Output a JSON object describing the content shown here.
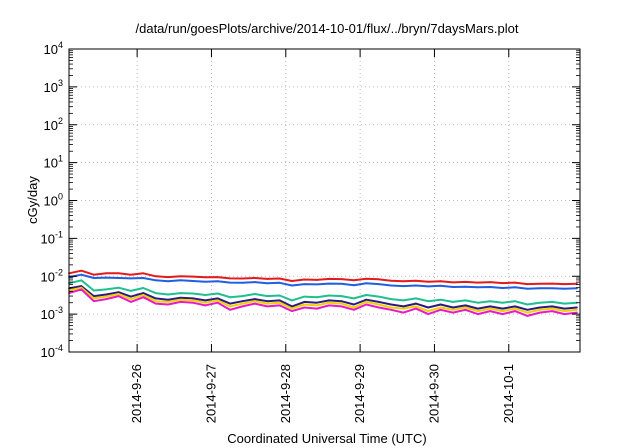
{
  "chart_data": {
    "type": "line",
    "title": "/data/run/goesPlots/archive/2014-10-01/flux/../bryn/7daysMars.plot",
    "xlabel": "Coordinated Universal Time (UTC)",
    "ylabel": "cGy/day",
    "y_scale": "log",
    "ylim": [
      0.0001,
      10000
    ],
    "y_ticks": [
      {
        "value": 0.0001,
        "base": "10",
        "exp": "-4"
      },
      {
        "value": 0.001,
        "base": "10",
        "exp": "-3"
      },
      {
        "value": 0.01,
        "base": "10",
        "exp": "-2"
      },
      {
        "value": 0.1,
        "base": "10",
        "exp": "-1"
      },
      {
        "value": 1,
        "base": "10",
        "exp": "0"
      },
      {
        "value": 10,
        "base": "10",
        "exp": "1"
      },
      {
        "value": 100,
        "base": "10",
        "exp": "2"
      },
      {
        "value": 1000,
        "base": "10",
        "exp": "3"
      },
      {
        "value": 10000,
        "base": "10",
        "exp": "4"
      }
    ],
    "xlim": [
      "2014-09-25T02:00",
      "2014-10-01T23:00"
    ],
    "x_ticks": [
      {
        "value": "2014-09-26T00:00",
        "label": "2014-9-26"
      },
      {
        "value": "2014-09-27T00:00",
        "label": "2014-9-27"
      },
      {
        "value": "2014-09-28T00:00",
        "label": "2014-9-28"
      },
      {
        "value": "2014-09-29T00:00",
        "label": "2014-9-29"
      },
      {
        "value": "2014-09-30T00:00",
        "label": "2014-9-30"
      },
      {
        "value": "2014-10-01T00:00",
        "label": "2014-10-1"
      }
    ],
    "grid": true,
    "legend": "none",
    "x": [
      "2014-09-25T02:00",
      "2014-09-25T06:00",
      "2014-09-25T10:00",
      "2014-09-25T14:00",
      "2014-09-25T18:00",
      "2014-09-25T22:00",
      "2014-09-26T02:00",
      "2014-09-26T06:00",
      "2014-09-26T10:00",
      "2014-09-26T14:00",
      "2014-09-26T18:00",
      "2014-09-26T22:00",
      "2014-09-27T02:00",
      "2014-09-27T06:00",
      "2014-09-27T10:00",
      "2014-09-27T14:00",
      "2014-09-27T18:00",
      "2014-09-27T22:00",
      "2014-09-28T02:00",
      "2014-09-28T06:00",
      "2014-09-28T10:00",
      "2014-09-28T14:00",
      "2014-09-28T18:00",
      "2014-09-28T22:00",
      "2014-09-29T02:00",
      "2014-09-29T06:00",
      "2014-09-29T10:00",
      "2014-09-29T14:00",
      "2014-09-29T18:00",
      "2014-09-29T22:00",
      "2014-09-30T02:00",
      "2014-09-30T06:00",
      "2014-09-30T10:00",
      "2014-09-30T14:00",
      "2014-09-30T18:00",
      "2014-09-30T22:00",
      "2014-10-01T02:00",
      "2014-10-01T06:00",
      "2014-10-01T10:00",
      "2014-10-01T14:00",
      "2014-10-01T18:00",
      "2014-10-01T22:00"
    ],
    "series": [
      {
        "color": "#e41a1c",
        "values": [
          0.012,
          0.014,
          0.011,
          0.012,
          0.012,
          0.011,
          0.012,
          0.01,
          0.0095,
          0.01,
          0.0098,
          0.0094,
          0.0095,
          0.0088,
          0.0087,
          0.009,
          0.0085,
          0.0087,
          0.0075,
          0.0082,
          0.008,
          0.0085,
          0.0084,
          0.0078,
          0.0086,
          0.0083,
          0.0076,
          0.0074,
          0.0076,
          0.0072,
          0.0074,
          0.0069,
          0.0071,
          0.0068,
          0.007,
          0.0066,
          0.0068,
          0.0062,
          0.0063,
          0.0064,
          0.0062,
          0.0063
        ]
      },
      {
        "color": "#1f5fe0",
        "values": [
          0.0095,
          0.011,
          0.009,
          0.0092,
          0.009,
          0.0088,
          0.009,
          0.0078,
          0.0074,
          0.0078,
          0.0075,
          0.0072,
          0.0074,
          0.0068,
          0.0067,
          0.007,
          0.0065,
          0.0067,
          0.0057,
          0.0062,
          0.0061,
          0.0064,
          0.0063,
          0.0058,
          0.0065,
          0.0062,
          0.0057,
          0.0055,
          0.0057,
          0.0054,
          0.0056,
          0.0052,
          0.0053,
          0.0051,
          0.0052,
          0.0049,
          0.0051,
          0.0047,
          0.0048,
          0.0048,
          0.0047,
          0.0048
        ]
      },
      {
        "color": "#1fbf8f",
        "values": [
          0.0065,
          0.0078,
          0.0042,
          0.0045,
          0.005,
          0.0041,
          0.0049,
          0.0036,
          0.0033,
          0.0036,
          0.0035,
          0.0032,
          0.0035,
          0.0028,
          0.003,
          0.0034,
          0.003,
          0.0031,
          0.0023,
          0.0029,
          0.0028,
          0.0031,
          0.003,
          0.0026,
          0.0032,
          0.0029,
          0.0025,
          0.0023,
          0.0026,
          0.0022,
          0.0024,
          0.0021,
          0.0023,
          0.002,
          0.0022,
          0.002,
          0.0022,
          0.0018,
          0.002,
          0.0021,
          0.0019,
          0.002
        ]
      },
      {
        "color": "#2b1a80",
        "values": [
          0.0048,
          0.0055,
          0.003,
          0.0033,
          0.0038,
          0.0029,
          0.0036,
          0.0026,
          0.0024,
          0.0027,
          0.0026,
          0.0023,
          0.0026,
          0.0019,
          0.0022,
          0.0025,
          0.0022,
          0.0023,
          0.0016,
          0.0021,
          0.002,
          0.0023,
          0.0022,
          0.0018,
          0.0024,
          0.0021,
          0.0018,
          0.0016,
          0.0019,
          0.0015,
          0.0018,
          0.0015,
          0.0017,
          0.0014,
          0.0016,
          0.0014,
          0.0016,
          0.0013,
          0.0015,
          0.0016,
          0.0014,
          0.0015
        ]
      },
      {
        "color": "#f0d000",
        "values": [
          0.0042,
          0.005,
          0.0026,
          0.0029,
          0.0034,
          0.0025,
          0.0032,
          0.0022,
          0.0021,
          0.0024,
          0.0023,
          0.002,
          0.0023,
          0.0016,
          0.0019,
          0.0022,
          0.0019,
          0.002,
          0.0014,
          0.0018,
          0.0017,
          0.002,
          0.0019,
          0.0015,
          0.0021,
          0.0018,
          0.0015,
          0.0014,
          0.0016,
          0.0012,
          0.0015,
          0.0013,
          0.0015,
          0.0012,
          0.0014,
          0.0012,
          0.0014,
          0.0011,
          0.0013,
          0.0014,
          0.0012,
          0.0013
        ]
      },
      {
        "color": "#e81ac8",
        "values": [
          0.0036,
          0.0045,
          0.0022,
          0.0025,
          0.003,
          0.0021,
          0.0028,
          0.0019,
          0.0018,
          0.0021,
          0.002,
          0.0017,
          0.002,
          0.0013,
          0.0016,
          0.0019,
          0.0016,
          0.0017,
          0.0012,
          0.0015,
          0.0014,
          0.0017,
          0.0016,
          0.0013,
          0.0018,
          0.0015,
          0.0013,
          0.0011,
          0.0014,
          0.001,
          0.0013,
          0.0011,
          0.0013,
          0.001,
          0.0012,
          0.001,
          0.0012,
          0.0009,
          0.0011,
          0.0012,
          0.001,
          0.0011
        ]
      }
    ]
  }
}
